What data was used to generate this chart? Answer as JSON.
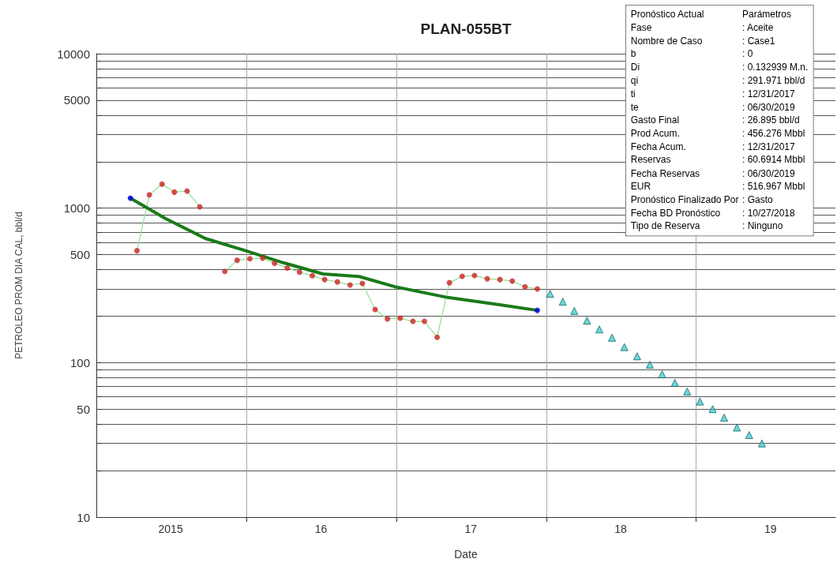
{
  "chart_data": {
    "type": "line",
    "title": "PLAN-055BT",
    "xlabel": "Date",
    "ylabel": "PETROLEO PROM DIA CAL, bbl/d",
    "log": "y",
    "grid": true,
    "xlim": [
      "2015-01-01",
      "2019-12-06"
    ],
    "xticks": [
      {
        "value": "2015-07-01",
        "label": "2015"
      },
      {
        "value": "2016-01-01",
        "label": null
      },
      {
        "value": "2016-07-01",
        "label": "16"
      },
      {
        "value": "2017-01-01",
        "label": null
      },
      {
        "value": "2017-07-01",
        "label": "17"
      },
      {
        "value": "2018-01-01",
        "label": null
      },
      {
        "value": "2018-07-01",
        "label": "18"
      },
      {
        "value": "2019-01-01",
        "label": null
      },
      {
        "value": "2019-07-01",
        "label": "19"
      }
    ],
    "ylim": [
      10,
      10000
    ],
    "yticks": [
      10,
      {
        "value": 20,
        "label": null
      },
      {
        "value": 30,
        "label": null
      },
      {
        "value": 40,
        "label": null
      },
      50,
      {
        "value": 60,
        "label": null
      },
      {
        "value": 70,
        "label": null
      },
      {
        "value": 80,
        "label": null
      },
      {
        "value": 90,
        "label": null
      },
      100,
      {
        "value": 200,
        "label": null
      },
      {
        "value": 300,
        "label": null
      },
      {
        "value": 400,
        "label": null
      },
      500,
      {
        "value": 600,
        "label": null
      },
      {
        "value": 700,
        "label": null
      },
      {
        "value": 800,
        "label": null
      },
      {
        "value": 900,
        "label": null
      },
      1000,
      {
        "value": 2000,
        "label": null
      },
      {
        "value": 3000,
        "label": null
      },
      {
        "value": 4000,
        "label": null
      },
      5000,
      {
        "value": 6000,
        "label": null
      },
      {
        "value": 7000,
        "label": null
      },
      {
        "value": 8000,
        "label": null
      },
      {
        "value": 9000,
        "label": null
      },
      10000
    ],
    "series": [
      {
        "type": "line",
        "color": "#90e090",
        "marker": "none",
        "line_style": "solid",
        "x": [
          "2015-04-10",
          "2015-05-10",
          "2015-06-10",
          "2015-07-10",
          "2015-08-10",
          "2015-09-10",
          "2015-10-10",
          "2015-11-10",
          "2015-12-10",
          "2016-01-10",
          "2016-02-10",
          "2016-03-10",
          "2016-04-10",
          "2016-05-10",
          "2016-06-10",
          "2016-07-10",
          "2016-08-10",
          "2016-09-10",
          "2016-10-10",
          "2016-11-10",
          "2016-12-10",
          "2017-01-10",
          "2017-02-10",
          "2017-03-10",
          "2017-04-10",
          "2017-05-10",
          "2017-06-10",
          "2017-07-10",
          "2017-08-10",
          "2017-09-10",
          "2017-10-10",
          "2017-11-10",
          "2017-12-10"
        ],
        "values": [
          530,
          1220,
          1430,
          1270,
          1290,
          1020,
          null,
          390,
          460,
          470,
          475,
          440,
          410,
          385,
          365,
          345,
          333,
          318,
          326,
          221,
          192,
          194,
          185,
          185,
          146,
          329,
          362,
          366,
          349,
          345,
          337,
          310,
          300
        ]
      },
      {
        "type": "scatter",
        "color": "#cc2222",
        "marker": "circle",
        "x": [
          "2015-04-10",
          "2015-05-10",
          "2015-06-10",
          "2015-07-10",
          "2015-08-10",
          "2015-09-10",
          "2015-10-10",
          "2015-11-10",
          "2015-12-10",
          "2016-01-10",
          "2016-02-10",
          "2016-03-10",
          "2016-04-10",
          "2016-05-10",
          "2016-06-10",
          "2016-07-10",
          "2016-08-10",
          "2016-09-10",
          "2016-10-10",
          "2016-11-10",
          "2016-12-10",
          "2017-01-10",
          "2017-02-10",
          "2017-03-10",
          "2017-04-10",
          "2017-05-10",
          "2017-06-10",
          "2017-07-10",
          "2017-08-10",
          "2017-09-10",
          "2017-10-10",
          "2017-11-10",
          "2017-12-10"
        ],
        "values": [
          530,
          1220,
          1430,
          1270,
          1290,
          1020,
          null,
          390,
          460,
          470,
          475,
          440,
          410,
          385,
          365,
          345,
          333,
          318,
          326,
          221,
          192,
          194,
          185,
          185,
          146,
          329,
          362,
          366,
          349,
          345,
          337,
          310,
          300
        ]
      },
      {
        "type": "line",
        "color": "#1a7a1a",
        "marker": "none",
        "line_style": "solid",
        "x": [
          "2015-03-25",
          "2015-06-19",
          "2015-09-23",
          "2015-12-28",
          "2016-04-02",
          "2016-07-06",
          "2016-10-02",
          "2016-12-28",
          "2017-05-06",
          "2017-09-09",
          "2017-12-10"
        ],
        "values": [
          1160,
          855,
          637,
          533,
          442,
          375,
          361,
          310,
          264,
          237,
          218
        ]
      },
      {
        "type": "scatter",
        "color": "#0000ee",
        "marker": "circle",
        "x": [
          "2015-03-25",
          "2017-12-10"
        ],
        "values": [
          1160,
          218
        ]
      },
      {
        "type": "scatter",
        "color": "#40d0d0",
        "marker": "triangle",
        "x": [
          "2018-01-10",
          "2018-02-10",
          "2018-03-10",
          "2018-04-10",
          "2018-05-10",
          "2018-06-10",
          "2018-07-10",
          "2018-08-10",
          "2018-09-10",
          "2018-10-10",
          "2018-11-10",
          "2018-12-10",
          "2019-01-10",
          "2019-02-10",
          "2019-03-10",
          "2019-04-10",
          "2019-05-10",
          "2019-06-10"
        ],
        "values": [
          279,
          248,
          216,
          187,
          164,
          145,
          126,
          110,
          97,
          84,
          74,
          65,
          56,
          50,
          44,
          38,
          34,
          30
        ]
      }
    ],
    "annotations": [
      "Pronóstico Actual\tParámetros",
      "Fase\t: Aceite",
      "Nombre de Caso\t: Case1",
      "b\t: 0",
      "Di\t: 0.132939 M.n.",
      "qi\t: 291.971 bbl/d",
      "ti\t: 12/31/2017",
      "te\t: 06/30/2019",
      "Gasto Final\t: 26.895 bbl/d",
      "Prod Acum.\t: 456.276 Mbbl",
      "Fecha Acum.\t: 12/31/2017",
      "Reservas\t: 60.6914 Mbbl",
      "Fecha Reservas\t: 06/30/2019",
      "EUR\t: 516.967 Mbbl",
      "Pronóstico Finalizado Por\t: Gasto",
      "Fecha BD Pronóstico\t: 10/27/2018",
      "Tipo de Reserva\t: Ninguno"
    ]
  }
}
